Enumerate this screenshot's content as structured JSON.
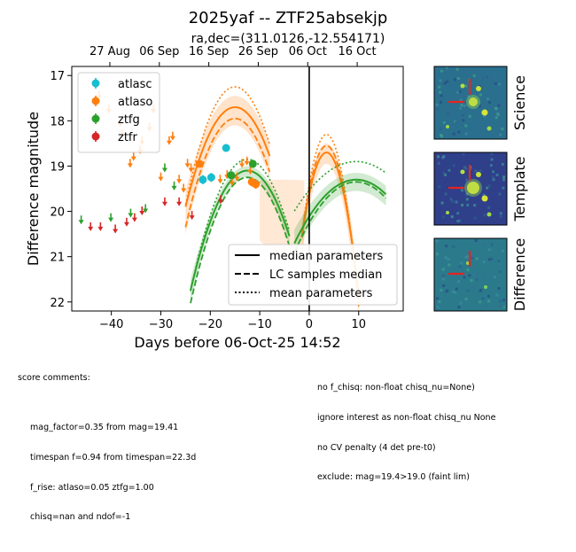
{
  "chart_data": {
    "type": "scatter",
    "title": "2025yaf -- ZTF25absekjp",
    "subtitle": "ra,dec=(311.0126,-12.554171)",
    "xlabel": "Days before 06-Oct-25 14:52",
    "ylabel": "Difference magnitude",
    "xlim": [
      -48,
      19
    ],
    "ylim": [
      22.2,
      16.8
    ],
    "y_inverted": true,
    "x_ticks": [
      -40,
      -30,
      -20,
      -10,
      0,
      10
    ],
    "y_ticks": [
      17,
      18,
      19,
      20,
      21,
      22
    ],
    "top_axis_ticks": [
      {
        "x": -40.3,
        "label": "27 Aug"
      },
      {
        "x": -30.3,
        "label": "06 Sep"
      },
      {
        "x": -20.3,
        "label": "16 Sep"
      },
      {
        "x": -10.3,
        "label": "26 Sep"
      },
      {
        "x": -0.3,
        "label": "06 Oct"
      },
      {
        "x": 9.7,
        "label": "16 Oct"
      }
    ],
    "reference_line_x": 0,
    "legend_placement": "top-left",
    "series": [
      {
        "name": "atlasc",
        "color": "#17becf",
        "detections": [
          {
            "x": -16.8,
            "y": 18.6,
            "err": 0.08
          },
          {
            "x": -21.5,
            "y": 19.3,
            "err": 0.1
          },
          {
            "x": -19.8,
            "y": 19.25,
            "err": 0.1
          }
        ],
        "upper_limits": []
      },
      {
        "name": "atlaso",
        "color": "#ff7f0e",
        "detections": [
          {
            "x": -22.2,
            "y": 18.95,
            "err": 0.08
          },
          {
            "x": -11.6,
            "y": 19.35,
            "err": 0.1
          },
          {
            "x": -10.8,
            "y": 19.4,
            "err": 0.1
          }
        ],
        "upper_limits": [
          {
            "x": -42.5,
            "y": 17.4
          },
          {
            "x": -40.5,
            "y": 17.7
          },
          {
            "x": -38.2,
            "y": 18.0
          },
          {
            "x": -37.8,
            "y": 18.25
          },
          {
            "x": -36.2,
            "y": 18.9
          },
          {
            "x": -35.5,
            "y": 18.75
          },
          {
            "x": -34.2,
            "y": 18.6
          },
          {
            "x": -33.8,
            "y": 18.4
          },
          {
            "x": -32.3,
            "y": 18.1
          },
          {
            "x": -31.5,
            "y": 17.7
          },
          {
            "x": -30.0,
            "y": 19.2
          },
          {
            "x": -28.3,
            "y": 18.4
          },
          {
            "x": -27.6,
            "y": 18.3
          },
          {
            "x": -26.3,
            "y": 19.25
          },
          {
            "x": -25.4,
            "y": 19.45
          },
          {
            "x": -24.6,
            "y": 18.9
          },
          {
            "x": -23.9,
            "y": 19.0
          },
          {
            "x": -18.0,
            "y": 19.25
          },
          {
            "x": -16.6,
            "y": 19.15
          },
          {
            "x": -15.6,
            "y": 19.3
          },
          {
            "x": -14.6,
            "y": 19.2
          },
          {
            "x": -13.6,
            "y": 18.9
          },
          {
            "x": -12.6,
            "y": 18.85
          },
          {
            "x": -11.9,
            "y": 19.05
          }
        ]
      },
      {
        "name": "ztfg",
        "color": "#2ca02c",
        "detections": [
          {
            "x": -15.8,
            "y": 19.2,
            "err": 0.08
          },
          {
            "x": -11.4,
            "y": 18.95,
            "err": 0.08
          }
        ],
        "upper_limits": [
          {
            "x": -46.1,
            "y": 20.15
          },
          {
            "x": -40.1,
            "y": 20.1
          },
          {
            "x": -36.1,
            "y": 20.0
          },
          {
            "x": -33.1,
            "y": 19.9
          },
          {
            "x": -29.2,
            "y": 19.0
          },
          {
            "x": -27.3,
            "y": 19.4
          }
        ]
      },
      {
        "name": "ztfr",
        "color": "#d62728",
        "detections": [],
        "upper_limits": [
          {
            "x": -44.2,
            "y": 20.3
          },
          {
            "x": -42.2,
            "y": 20.3
          },
          {
            "x": -39.2,
            "y": 20.35
          },
          {
            "x": -36.9,
            "y": 20.2
          },
          {
            "x": -35.3,
            "y": 20.1
          },
          {
            "x": -33.8,
            "y": 19.95
          },
          {
            "x": -29.2,
            "y": 19.75
          },
          {
            "x": -26.3,
            "y": 19.75
          },
          {
            "x": -23.7,
            "y": 20.05
          },
          {
            "x": -17.9,
            "y": 19.7
          }
        ]
      }
    ],
    "fit_legend": [
      "median parameters",
      "LC samples median",
      "mean parameters"
    ]
  },
  "stamps": [
    {
      "label": "Science"
    },
    {
      "label": "Template"
    },
    {
      "label": "Difference"
    }
  ],
  "comments": {
    "heading": "score comments:",
    "left": [
      "mag_factor=0.35 from mag=19.41",
      "timespan f=0.94 from timespan=22.3d",
      "f_rise: atlaso=0.05 ztfg=1.00",
      "chisq=nan and ndof=-1"
    ],
    "right": [
      "no f_chisq: non-float chisq_nu=None)",
      "ignore interest as non-float chisq_nu None",
      "no CV penalty (4 det pre-t0)",
      "exclude: mag=19.4>19.0 (faint lim)"
    ]
  }
}
